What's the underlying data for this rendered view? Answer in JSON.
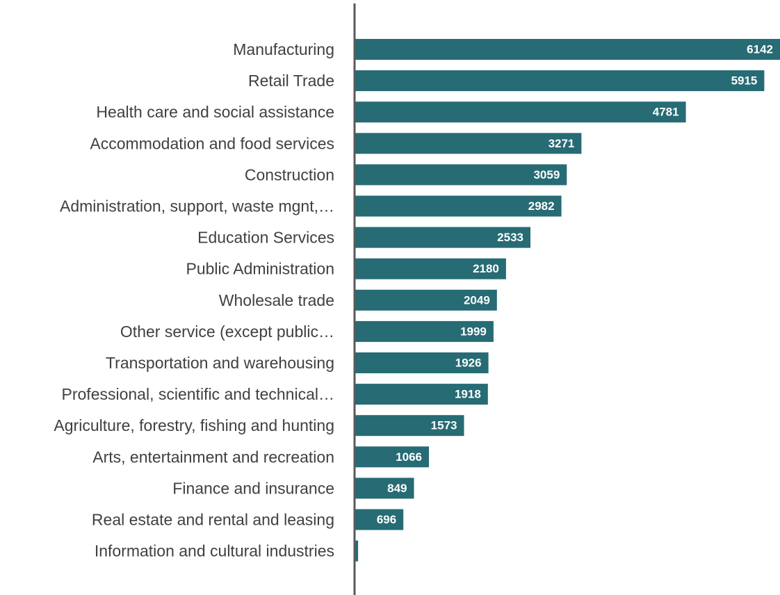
{
  "colors": {
    "bar": "#276b74",
    "axis": "#595959",
    "category_text": "#404040",
    "value_text": "#ffffff",
    "background": "#ffffff"
  },
  "chart_data": {
    "type": "bar",
    "orientation": "horizontal",
    "title": "",
    "xlabel": "",
    "ylabel": "",
    "grid": false,
    "legend": "none",
    "data_labels": true,
    "xlim": [
      0,
      6142
    ],
    "categories": [
      "Manufacturing",
      "Retail Trade",
      "Health care and social assistance",
      "Accommodation and food services",
      "Construction",
      "Administration, support, waste mgnt,…",
      "Education Services",
      "Public Administration",
      "Wholesale trade",
      "Other service (except public…",
      "Transportation and warehousing",
      "Professional, scientific and technical…",
      "Agriculture, forestry, fishing and hunting",
      "Arts, entertainment and recreation",
      "Finance and insurance",
      "Real estate and rental and leasing",
      "Information and cultural industries"
    ],
    "values": [
      6142,
      5915,
      4781,
      3271,
      3059,
      2982,
      2533,
      2180,
      2049,
      1999,
      1926,
      1918,
      1573,
      1066,
      849,
      696,
      41
    ]
  }
}
